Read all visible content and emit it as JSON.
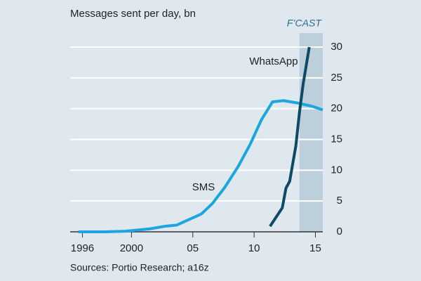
{
  "chart_data": {
    "type": "line",
    "title": "Messages sent per day, bn",
    "source": "Sources: Portio Research; a16z",
    "forecast": {
      "label": "F’CAST",
      "xlim": [
        2013.7,
        2015.6
      ]
    },
    "xlim": [
      1995,
      2015.6
    ],
    "xticks": [
      1996,
      2000,
      {
        "value": 2005,
        "label": "05"
      },
      {
        "value": 2010,
        "label": "10"
      },
      {
        "value": 2015,
        "label": "15"
      }
    ],
    "ylim": [
      0,
      30
    ],
    "yticks": [
      0,
      5,
      10,
      15,
      20,
      25,
      30
    ],
    "grid": true,
    "series": [
      {
        "name": "SMS",
        "color": "#1ba6de",
        "x": [
          1995.66,
          1997.8,
          1999.5,
          2001.55,
          2002.7,
          2003.7,
          2004.7,
          2005.7,
          2006.6,
          2007.6,
          2008.7,
          2009.7,
          2010.6,
          2011.5,
          2012.4,
          2013.6,
          2014.7,
          2015.6
        ],
        "values": [
          0,
          0,
          0.1,
          0.5,
          0.9,
          1.1,
          2.0,
          2.9,
          4.6,
          7.2,
          10.6,
          14.3,
          18.2,
          21.1,
          21.3,
          20.9,
          20.4,
          19.8
        ]
      },
      {
        "name": "WhatsApp",
        "color": "#0e4a66",
        "x": [
          2011.3,
          2012.3,
          2012.6,
          2012.9,
          2013.4,
          2013.7,
          2014.0,
          2014.5
        ],
        "values": [
          0.9,
          3.9,
          7.1,
          8.2,
          13.9,
          19.4,
          24,
          30
        ]
      }
    ]
  }
}
